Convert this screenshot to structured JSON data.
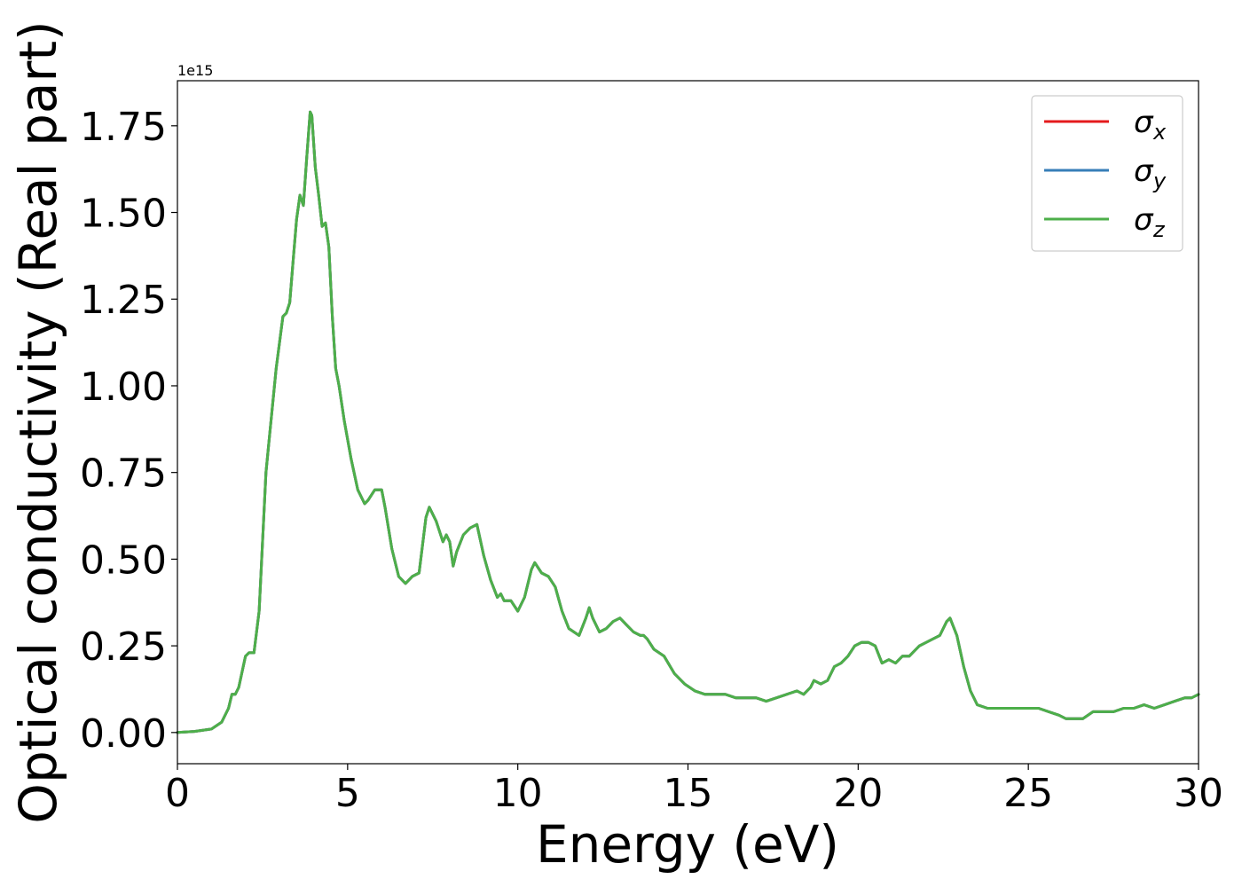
{
  "chart_data": {
    "type": "line",
    "title": "",
    "xlabel": "Energy (eV)",
    "ylabel": "Optical conductivity (Real part)",
    "offset_text": "1e15",
    "scale": 1000000000000000.0,
    "xlim": [
      0,
      30
    ],
    "ylim": [
      -0.09,
      1.88
    ],
    "xticks": [
      0,
      5,
      10,
      15,
      20,
      25,
      30
    ],
    "yticks": [
      0.0,
      0.25,
      0.5,
      0.75,
      1.0,
      1.25,
      1.5,
      1.75
    ],
    "ytick_labels": [
      "0.00",
      "0.25",
      "0.50",
      "0.75",
      "1.00",
      "1.25",
      "1.50",
      "1.75"
    ],
    "grid": false,
    "legend_position": "top-right",
    "legend": [
      {
        "symbol": "σ",
        "subscript": "x"
      },
      {
        "symbol": "σ",
        "subscript": "y"
      },
      {
        "symbol": "σ",
        "subscript": "z"
      }
    ],
    "x": [
      0,
      0.5,
      1.0,
      1.3,
      1.5,
      1.6,
      1.7,
      1.8,
      2.0,
      2.1,
      2.25,
      2.4,
      2.6,
      2.7,
      2.9,
      3.1,
      3.2,
      3.3,
      3.4,
      3.5,
      3.6,
      3.7,
      3.8,
      3.9,
      3.95,
      4.05,
      4.15,
      4.25,
      4.35,
      4.45,
      4.55,
      4.65,
      4.75,
      4.9,
      5.1,
      5.3,
      5.5,
      5.6,
      5.8,
      6.0,
      6.1,
      6.3,
      6.5,
      6.7,
      6.9,
      7.1,
      7.3,
      7.4,
      7.6,
      7.8,
      7.9,
      8.0,
      8.1,
      8.2,
      8.4,
      8.6,
      8.8,
      9.0,
      9.2,
      9.4,
      9.5,
      9.6,
      9.8,
      10.0,
      10.2,
      10.4,
      10.5,
      10.7,
      10.9,
      11.1,
      11.3,
      11.5,
      11.8,
      12.0,
      12.1,
      12.2,
      12.4,
      12.6,
      12.8,
      13.0,
      13.2,
      13.4,
      13.6,
      13.7,
      13.8,
      14.0,
      14.3,
      14.6,
      14.9,
      15.2,
      15.5,
      15.8,
      16.1,
      16.4,
      16.7,
      17.0,
      17.3,
      17.6,
      17.9,
      18.2,
      18.4,
      18.6,
      18.7,
      18.9,
      19.1,
      19.3,
      19.5,
      19.7,
      19.9,
      20.1,
      20.3,
      20.5,
      20.7,
      20.9,
      21.1,
      21.3,
      21.5,
      21.8,
      22.0,
      22.2,
      22.4,
      22.6,
      22.7,
      22.9,
      23.1,
      23.3,
      23.5,
      23.8,
      24.1,
      24.4,
      24.7,
      25.0,
      25.3,
      25.6,
      25.9,
      26.1,
      26.3,
      26.6,
      26.9,
      27.2,
      27.5,
      27.8,
      28.1,
      28.4,
      28.7,
      29.0,
      29.3,
      29.6,
      29.8,
      30.0
    ],
    "y": [
      0.0,
      0.003,
      0.01,
      0.03,
      0.07,
      0.11,
      0.11,
      0.13,
      0.22,
      0.23,
      0.23,
      0.35,
      0.75,
      0.85,
      1.05,
      1.2,
      1.21,
      1.24,
      1.36,
      1.48,
      1.55,
      1.52,
      1.66,
      1.79,
      1.78,
      1.63,
      1.55,
      1.46,
      1.47,
      1.4,
      1.2,
      1.05,
      1.0,
      0.9,
      0.79,
      0.7,
      0.66,
      0.67,
      0.7,
      0.7,
      0.65,
      0.53,
      0.45,
      0.43,
      0.45,
      0.46,
      0.62,
      0.65,
      0.61,
      0.55,
      0.57,
      0.55,
      0.48,
      0.52,
      0.57,
      0.59,
      0.6,
      0.51,
      0.44,
      0.39,
      0.4,
      0.38,
      0.38,
      0.35,
      0.39,
      0.47,
      0.49,
      0.46,
      0.45,
      0.42,
      0.35,
      0.3,
      0.28,
      0.33,
      0.36,
      0.33,
      0.29,
      0.3,
      0.32,
      0.33,
      0.31,
      0.29,
      0.28,
      0.28,
      0.27,
      0.24,
      0.22,
      0.17,
      0.14,
      0.12,
      0.11,
      0.11,
      0.11,
      0.1,
      0.1,
      0.1,
      0.09,
      0.1,
      0.11,
      0.12,
      0.11,
      0.13,
      0.15,
      0.14,
      0.15,
      0.19,
      0.2,
      0.22,
      0.25,
      0.26,
      0.26,
      0.25,
      0.2,
      0.21,
      0.2,
      0.22,
      0.22,
      0.25,
      0.26,
      0.27,
      0.28,
      0.32,
      0.33,
      0.28,
      0.19,
      0.12,
      0.08,
      0.07,
      0.07,
      0.07,
      0.07,
      0.07,
      0.07,
      0.06,
      0.05,
      0.04,
      0.04,
      0.04,
      0.06,
      0.06,
      0.06,
      0.07,
      0.07,
      0.08,
      0.07,
      0.08,
      0.09,
      0.1,
      0.1,
      0.11
    ],
    "series": [
      {
        "name": "σx",
        "color": "#e41a1c"
      },
      {
        "name": "σy",
        "color": "#377eb8"
      },
      {
        "name": "σz",
        "color": "#4daf4a"
      }
    ]
  }
}
